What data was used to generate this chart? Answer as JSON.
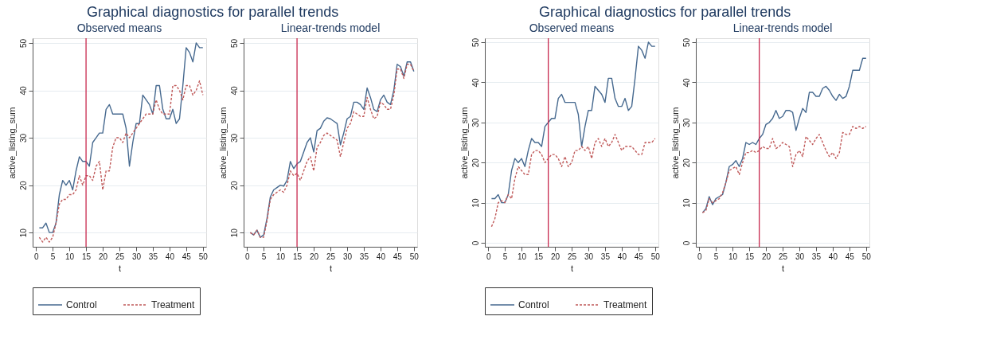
{
  "chart_data": [
    {
      "type": "line",
      "title": "Graphical diagnostics for parallel trends",
      "subtitle": "Observed means",
      "xlabel": "t",
      "ylabel": "active_listing_sum",
      "x": [
        1,
        2,
        3,
        4,
        5,
        6,
        7,
        8,
        9,
        10,
        11,
        12,
        13,
        14,
        15,
        16,
        17,
        18,
        19,
        20,
        21,
        22,
        23,
        24,
        25,
        26,
        27,
        28,
        29,
        30,
        31,
        32,
        33,
        34,
        35,
        36,
        37,
        38,
        39,
        40,
        41,
        42,
        43,
        44,
        45,
        46,
        47,
        48,
        49,
        50
      ],
      "xlim": [
        -1,
        51
      ],
      "xticks": [
        0,
        5,
        10,
        15,
        20,
        25,
        30,
        35,
        40,
        45,
        50
      ],
      "ylim": [
        7,
        51
      ],
      "yticks": [
        10,
        20,
        30,
        40,
        50
      ],
      "grid": "y",
      "legend": "bottom",
      "ref_lines": [
        {
          "axis": "x",
          "value": 15,
          "color": "#c8284e"
        }
      ],
      "series": [
        {
          "name": "Control",
          "color": "#46698f",
          "line_style": "solid",
          "values": [
            11,
            11,
            12,
            10,
            10,
            12,
            18,
            21,
            20,
            21,
            19,
            23,
            26,
            25,
            25,
            24,
            29,
            30,
            31,
            31,
            36,
            37,
            35,
            35,
            35,
            35,
            32,
            24,
            29,
            33,
            33,
            39,
            38,
            37,
            35,
            41,
            41,
            36,
            34,
            34,
            36,
            33,
            34,
            41,
            49,
            48,
            46,
            50,
            49,
            49
          ]
        },
        {
          "name": "Treatment",
          "color": "#c05a5a",
          "line_style": "dashed",
          "values": [
            9,
            8,
            9,
            8,
            9,
            12,
            16,
            17,
            17,
            18,
            18,
            19,
            22,
            20,
            22,
            22,
            21,
            24,
            25,
            19,
            23,
            23,
            28,
            30,
            30,
            29,
            31,
            30,
            31,
            32,
            33,
            34,
            35,
            35,
            35,
            38,
            36,
            35,
            35,
            35,
            41,
            41,
            40,
            38,
            41,
            41,
            39,
            40,
            42,
            39
          ]
        }
      ]
    },
    {
      "type": "line",
      "subtitle": "Linear-trends model",
      "xlabel": "t",
      "ylabel": "active_listing_sum",
      "x": [
        1,
        2,
        3,
        4,
        5,
        6,
        7,
        8,
        9,
        10,
        11,
        12,
        13,
        14,
        15,
        16,
        17,
        18,
        19,
        20,
        21,
        22,
        23,
        24,
        25,
        26,
        27,
        28,
        29,
        30,
        31,
        32,
        33,
        34,
        35,
        36,
        37,
        38,
        39,
        40,
        41,
        42,
        43,
        44,
        45,
        46,
        47,
        48,
        49,
        50
      ],
      "xlim": [
        -1,
        51
      ],
      "xticks": [
        0,
        5,
        10,
        15,
        20,
        25,
        30,
        35,
        40,
        45,
        50
      ],
      "ylim": [
        7,
        51
      ],
      "yticks": [
        10,
        20,
        30,
        40,
        50
      ],
      "grid": "y",
      "legend": "bottom",
      "ref_lines": [
        {
          "axis": "x",
          "value": 15,
          "color": "#c8284e"
        }
      ],
      "series": [
        {
          "name": "Control",
          "color": "#46698f",
          "line_style": "solid",
          "values": [
            10,
            9.5,
            10.5,
            9,
            9.5,
            13,
            17.5,
            19,
            19.5,
            20,
            19.8,
            21,
            25,
            23.5,
            24.5,
            25,
            27,
            29,
            30,
            27,
            31.5,
            32,
            33.5,
            34.2,
            34,
            33.5,
            33,
            28.5,
            31,
            34,
            34.5,
            37.5,
            37.5,
            37,
            36,
            40.5,
            38.5,
            36,
            35.5,
            38,
            39,
            37.5,
            37,
            40,
            45.5,
            45,
            43,
            46,
            46,
            44
          ]
        },
        {
          "name": "Treatment",
          "color": "#c05a5a",
          "line_style": "dashed",
          "values": [
            10,
            9.5,
            10.5,
            9,
            9,
            12.5,
            17,
            18,
            18.5,
            19,
            18.5,
            20,
            23,
            22,
            22.5,
            21,
            23,
            25,
            26,
            23,
            28,
            29,
            30.5,
            31,
            30.5,
            30,
            29.5,
            26,
            29,
            32,
            33,
            35.5,
            35,
            34.5,
            34.5,
            38.5,
            36,
            34,
            34.5,
            37.5,
            37,
            36,
            36,
            39,
            44.5,
            44.5,
            42.5,
            45.5,
            45.5,
            44
          ]
        }
      ]
    },
    {
      "type": "line",
      "title": "Graphical diagnostics for parallel trends",
      "subtitle": "Observed means",
      "xlabel": "t",
      "ylabel": "active_listing_sum",
      "x": [
        1,
        2,
        3,
        4,
        5,
        6,
        7,
        8,
        9,
        10,
        11,
        12,
        13,
        14,
        15,
        16,
        17,
        18,
        19,
        20,
        21,
        22,
        23,
        24,
        25,
        26,
        27,
        28,
        29,
        30,
        31,
        32,
        33,
        34,
        35,
        36,
        37,
        38,
        39,
        40,
        41,
        42,
        43,
        44,
        45,
        46,
        47,
        48,
        49,
        50
      ],
      "xlim": [
        -1,
        51
      ],
      "xticks": [
        0,
        5,
        10,
        15,
        20,
        25,
        30,
        35,
        40,
        45,
        50
      ],
      "ylim": [
        -1,
        51
      ],
      "yticks": [
        0,
        10,
        20,
        30,
        40,
        50
      ],
      "grid": "y",
      "legend": "bottom",
      "ref_lines": [
        {
          "axis": "x",
          "value": 18,
          "color": "#c8284e"
        }
      ],
      "series": [
        {
          "name": "Control",
          "color": "#46698f",
          "line_style": "solid",
          "values": [
            11,
            11,
            12,
            10,
            10,
            12,
            18,
            21,
            20,
            21,
            19,
            23,
            26,
            25,
            25,
            24,
            29,
            30,
            31,
            31,
            36,
            37,
            35,
            35,
            35,
            35,
            32,
            24,
            29,
            33,
            33,
            39,
            38,
            37,
            35,
            41,
            41,
            36,
            34,
            34,
            36,
            33,
            34,
            41,
            49,
            48,
            46,
            50,
            49,
            49
          ]
        },
        {
          "name": "Treatment",
          "color": "#c05a5a",
          "line_style": "dashed",
          "values": [
            4,
            6,
            10,
            10.5,
            10,
            12,
            11,
            16,
            19,
            18,
            17,
            17,
            22,
            23,
            23,
            22,
            20,
            21,
            22,
            22,
            21,
            19,
            21.5,
            19,
            20,
            23,
            23,
            24,
            23,
            24,
            21,
            25,
            26,
            24,
            26,
            24,
            25,
            27,
            25,
            23,
            24,
            24,
            24,
            23,
            22,
            22,
            25,
            25,
            25,
            26
          ]
        }
      ]
    },
    {
      "type": "line",
      "subtitle": "Linear-trends model",
      "xlabel": "t",
      "ylabel": "active_listing_sum",
      "x": [
        1,
        2,
        3,
        4,
        5,
        6,
        7,
        8,
        9,
        10,
        11,
        12,
        13,
        14,
        15,
        16,
        17,
        18,
        19,
        20,
        21,
        22,
        23,
        24,
        25,
        26,
        27,
        28,
        29,
        30,
        31,
        32,
        33,
        34,
        35,
        36,
        37,
        38,
        39,
        40,
        41,
        42,
        43,
        44,
        45,
        46,
        47,
        48,
        49,
        50
      ],
      "xlim": [
        -1,
        51
      ],
      "xticks": [
        0,
        5,
        10,
        15,
        20,
        25,
        30,
        35,
        40,
        45,
        50
      ],
      "ylim": [
        -1,
        51
      ],
      "yticks": [
        0,
        10,
        20,
        30,
        40,
        50
      ],
      "grid": "y",
      "legend": "bottom",
      "ref_lines": [
        {
          "axis": "x",
          "value": 18,
          "color": "#c8284e"
        }
      ],
      "series": [
        {
          "name": "Control",
          "color": "#46698f",
          "line_style": "solid",
          "values": [
            7.5,
            8.5,
            11.5,
            9.5,
            11,
            11.5,
            12,
            15,
            19,
            19.5,
            20.5,
            19,
            21,
            25,
            24.5,
            25,
            24.5,
            26,
            27,
            29.5,
            30,
            31,
            33,
            31,
            31.5,
            33,
            33,
            32.5,
            28,
            31,
            33.5,
            32.5,
            37.5,
            37.5,
            36.5,
            36.5,
            38.5,
            39,
            38,
            36.5,
            35.5,
            37,
            36,
            36.5,
            39,
            43,
            43,
            43,
            46,
            46
          ]
        },
        {
          "name": "Treatment",
          "color": "#c05a5a",
          "line_style": "dashed",
          "values": [
            7.5,
            8,
            11,
            10,
            10.5,
            11,
            12.5,
            15,
            18,
            18.5,
            19,
            17,
            20,
            22.5,
            22.5,
            23,
            22.5,
            23,
            24,
            23.5,
            23.5,
            26,
            23.5,
            24,
            25,
            24.5,
            24,
            19,
            22,
            23,
            21.5,
            26.5,
            25.5,
            24.5,
            26,
            27,
            25,
            23,
            21.5,
            22.5,
            21,
            22.5,
            27.5,
            27,
            27,
            29,
            28.5,
            29,
            28.5,
            29
          ]
        }
      ]
    }
  ]
}
